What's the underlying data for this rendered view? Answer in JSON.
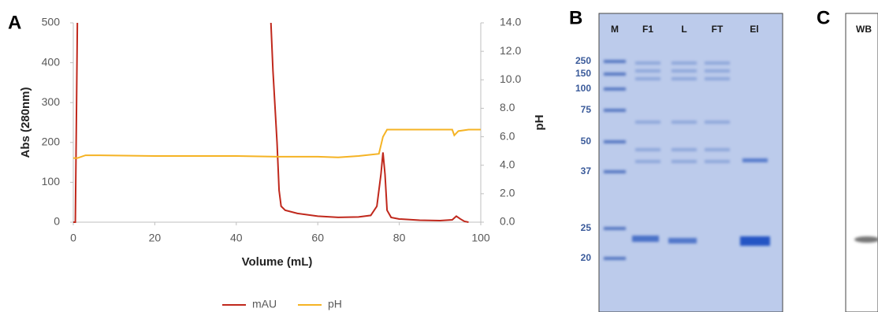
{
  "chart_data": {
    "type": "line",
    "xlabel": "Volume (mL)",
    "ylabel": "Abs (280nm)",
    "y2label": "pH",
    "xlim": [
      0,
      100
    ],
    "xticks": [
      0,
      20,
      40,
      60,
      80,
      100
    ],
    "ylim": [
      0,
      500
    ],
    "yticks": [
      0,
      100,
      200,
      300,
      400,
      500
    ],
    "y2lim": [
      0,
      14
    ],
    "y2ticks": [
      {
        "value": 0,
        "label": "0.0"
      },
      {
        "value": 2,
        "label": "2.0"
      },
      {
        "value": 4,
        "label": "4.0"
      },
      {
        "value": 6,
        "label": "6.0"
      },
      {
        "value": 8,
        "label": "8.0"
      },
      {
        "value": 10,
        "label": "10.0"
      },
      {
        "value": 12,
        "label": "12.0"
      },
      {
        "value": 14,
        "label": "14.0"
      }
    ],
    "series": [
      {
        "name": "mAU",
        "color": "#c0281c",
        "x": [
          0,
          0.5,
          1,
          1.2,
          48.5,
          49,
          50,
          50.5,
          51,
          52,
          55,
          60,
          65,
          70,
          73,
          74.5,
          75.5,
          76,
          76.5,
          77,
          78,
          80,
          85,
          90,
          93,
          94,
          95,
          96,
          97
        ],
        "values": [
          0,
          0,
          500,
          null,
          500,
          380,
          200,
          80,
          40,
          30,
          22,
          15,
          12,
          13,
          17,
          40,
          120,
          175,
          120,
          30,
          12,
          8,
          5,
          4,
          6,
          15,
          8,
          2,
          0
        ]
      },
      {
        "name": "pH",
        "color": "#f5b324",
        "axis": "y2",
        "x": [
          0,
          1,
          3,
          5,
          20,
          40,
          50,
          60,
          65,
          70,
          75,
          76,
          77,
          80,
          93,
          93.5,
          94.5,
          97,
          100
        ],
        "values": [
          4.5,
          4.5,
          4.7,
          4.7,
          4.65,
          4.65,
          4.6,
          4.6,
          4.55,
          4.65,
          4.8,
          6.0,
          6.5,
          6.5,
          6.5,
          6.1,
          6.4,
          6.5,
          6.5
        ]
      }
    ]
  },
  "panels": [
    "A",
    "B",
    "C"
  ],
  "gel": {
    "lanes": [
      "M",
      "F1",
      "L",
      "FT",
      "El"
    ],
    "markers": [
      250,
      150,
      100,
      75,
      50,
      37,
      25,
      20
    ]
  },
  "blot": {
    "label": "WB"
  }
}
